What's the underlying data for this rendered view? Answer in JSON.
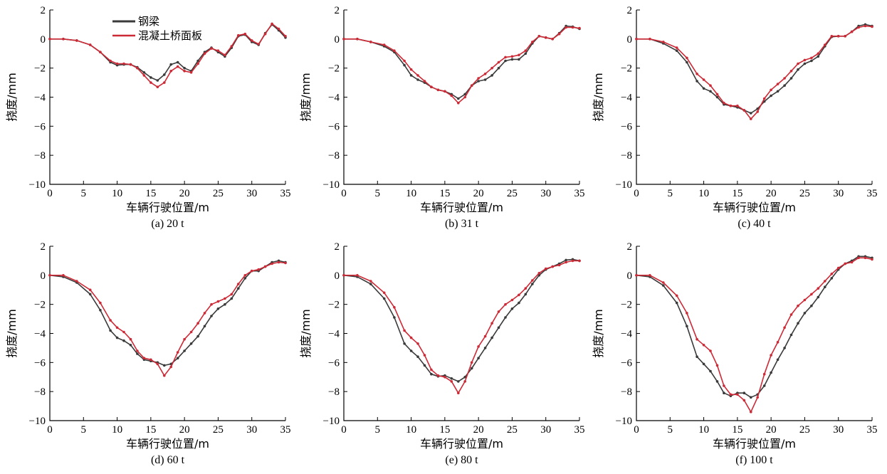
{
  "chart_data": [
    {
      "type": "line",
      "caption": "(a) 20 t",
      "xlabel": "车辆行驶位置/m",
      "ylabel": "挠度/mm",
      "xlim": [
        0,
        35
      ],
      "ylim": [
        -10,
        2
      ],
      "xticks": [
        0,
        5,
        10,
        15,
        20,
        25,
        30,
        35
      ],
      "yticks": [
        -10,
        -8,
        -6,
        -4,
        -2,
        0,
        2
      ],
      "legend": true,
      "series": [
        {
          "name": "钢梁",
          "color": "#3a3a3a",
          "x": [
            0,
            2,
            4,
            6,
            7.5,
            9,
            10,
            11,
            12,
            13,
            14,
            15,
            16,
            17,
            18,
            19,
            20,
            21,
            22,
            23,
            24,
            25,
            26,
            27,
            28,
            29,
            30,
            31,
            32,
            33,
            34,
            35
          ],
          "y": [
            0,
            0,
            -0.1,
            -0.4,
            -0.9,
            -1.6,
            -1.8,
            -1.75,
            -1.75,
            -1.95,
            -2.3,
            -2.65,
            -2.85,
            -2.45,
            -1.75,
            -1.6,
            -2.0,
            -2.2,
            -1.5,
            -0.9,
            -0.6,
            -0.9,
            -1.2,
            -0.6,
            0.2,
            0.3,
            -0.2,
            -0.4,
            0.4,
            1.0,
            0.6,
            0.1
          ]
        },
        {
          "name": "混凝土桥面板",
          "color": "#cc2a36",
          "x": [
            0,
            2,
            4,
            6,
            7.5,
            9,
            10,
            11,
            12,
            13,
            14,
            15,
            16,
            17,
            18,
            19,
            20,
            21,
            22,
            23,
            24,
            25,
            26,
            27,
            28,
            29,
            30,
            31,
            32,
            33,
            34,
            35
          ],
          "y": [
            0,
            0,
            -0.1,
            -0.4,
            -0.9,
            -1.5,
            -1.7,
            -1.7,
            -1.75,
            -2.0,
            -2.5,
            -3.0,
            -3.3,
            -3.0,
            -2.2,
            -1.9,
            -2.2,
            -2.3,
            -1.7,
            -1.0,
            -0.65,
            -0.8,
            -1.1,
            -0.5,
            0.25,
            0.35,
            -0.1,
            -0.35,
            0.35,
            1.05,
            0.7,
            0.2
          ]
        }
      ]
    },
    {
      "type": "line",
      "caption": "(b) 31 t",
      "xlabel": "车辆行驶位置/m",
      "ylabel": "挠度/mm",
      "xlim": [
        0,
        35
      ],
      "ylim": [
        -10,
        2
      ],
      "xticks": [
        0,
        5,
        10,
        15,
        20,
        25,
        30,
        35
      ],
      "yticks": [
        -10,
        -8,
        -6,
        -4,
        -2,
        0,
        2
      ],
      "legend": false,
      "series": [
        {
          "name": "钢梁",
          "color": "#3a3a3a",
          "x": [
            0,
            2,
            4,
            6,
            7.5,
            9,
            10,
            11,
            12,
            13,
            14,
            15,
            16,
            17,
            18,
            19,
            20,
            21,
            22,
            23,
            24,
            25,
            26,
            27,
            28,
            29,
            30,
            31,
            32,
            33,
            34,
            35
          ],
          "y": [
            0,
            0,
            -0.2,
            -0.5,
            -0.9,
            -1.8,
            -2.5,
            -2.8,
            -3.0,
            -3.3,
            -3.5,
            -3.6,
            -3.8,
            -4.1,
            -3.8,
            -3.2,
            -2.9,
            -2.8,
            -2.5,
            -2.0,
            -1.5,
            -1.4,
            -1.4,
            -1.0,
            -0.3,
            0.2,
            0.1,
            0.0,
            0.4,
            0.9,
            0.85,
            0.7
          ]
        },
        {
          "name": "混凝土桥面板",
          "color": "#cc2a36",
          "x": [
            0,
            2,
            4,
            6,
            7.5,
            9,
            10,
            11,
            12,
            13,
            14,
            15,
            16,
            17,
            18,
            19,
            20,
            21,
            22,
            23,
            24,
            25,
            26,
            27,
            28,
            29,
            30,
            31,
            32,
            33,
            34,
            35
          ],
          "y": [
            0,
            0,
            -0.2,
            -0.4,
            -0.8,
            -1.5,
            -2.1,
            -2.5,
            -2.9,
            -3.3,
            -3.5,
            -3.6,
            -3.9,
            -4.4,
            -4.0,
            -3.2,
            -2.7,
            -2.4,
            -2.0,
            -1.6,
            -1.25,
            -1.2,
            -1.1,
            -0.8,
            -0.2,
            0.2,
            0.1,
            0.0,
            0.35,
            0.8,
            0.8,
            0.75
          ]
        }
      ]
    },
    {
      "type": "line",
      "caption": "(c) 40 t",
      "xlabel": "车辆行驶位置/m",
      "ylabel": "挠度/mm",
      "xlim": [
        0,
        35
      ],
      "ylim": [
        -10,
        2
      ],
      "xticks": [
        0,
        5,
        10,
        15,
        20,
        25,
        30,
        35
      ],
      "yticks": [
        -10,
        -8,
        -6,
        -4,
        -2,
        0,
        2
      ],
      "legend": false,
      "series": [
        {
          "name": "钢梁",
          "color": "#3a3a3a",
          "x": [
            0,
            2,
            4,
            6,
            7.5,
            9,
            10,
            11,
            12,
            13,
            14,
            15,
            16,
            17,
            18,
            19,
            20,
            21,
            22,
            23,
            24,
            25,
            26,
            27,
            28,
            29,
            30,
            31,
            32,
            33,
            34,
            35
          ],
          "y": [
            0,
            0,
            -0.3,
            -0.8,
            -1.6,
            -2.9,
            -3.4,
            -3.6,
            -4.0,
            -4.5,
            -4.6,
            -4.7,
            -4.9,
            -5.1,
            -4.8,
            -4.3,
            -3.9,
            -3.6,
            -3.2,
            -2.7,
            -2.1,
            -1.7,
            -1.5,
            -1.2,
            -0.5,
            0.15,
            0.2,
            0.2,
            0.5,
            0.9,
            1.0,
            0.9
          ]
        },
        {
          "name": "混凝土桥面板",
          "color": "#cc2a36",
          "x": [
            0,
            2,
            4,
            6,
            7.5,
            9,
            10,
            11,
            12,
            13,
            14,
            15,
            16,
            17,
            18,
            19,
            20,
            21,
            22,
            23,
            24,
            25,
            26,
            27,
            28,
            29,
            30,
            31,
            32,
            33,
            34,
            35
          ],
          "y": [
            0,
            0,
            -0.2,
            -0.6,
            -1.3,
            -2.4,
            -2.8,
            -3.2,
            -3.8,
            -4.4,
            -4.6,
            -4.6,
            -4.9,
            -5.5,
            -5.0,
            -4.1,
            -3.5,
            -3.1,
            -2.7,
            -2.2,
            -1.7,
            -1.45,
            -1.3,
            -1.0,
            -0.4,
            0.2,
            0.2,
            0.2,
            0.5,
            0.8,
            0.9,
            0.85
          ]
        }
      ]
    },
    {
      "type": "line",
      "caption": "(d) 60 t",
      "xlabel": "车辆行驶位置/m",
      "ylabel": "挠度/mm",
      "xlim": [
        0,
        35
      ],
      "ylim": [
        -10,
        2
      ],
      "xticks": [
        0,
        5,
        10,
        15,
        20,
        25,
        30,
        35
      ],
      "yticks": [
        -10,
        -8,
        -6,
        -4,
        -2,
        0,
        2
      ],
      "legend": false,
      "series": [
        {
          "name": "钢梁",
          "color": "#3a3a3a",
          "x": [
            0,
            2,
            4,
            6,
            7.5,
            9,
            10,
            11,
            12,
            13,
            14,
            15,
            16,
            17,
            18,
            19,
            20,
            21,
            22,
            23,
            24,
            25,
            26,
            27,
            28,
            29,
            30,
            31,
            32,
            33,
            34,
            35
          ],
          "y": [
            0,
            -0.1,
            -0.5,
            -1.3,
            -2.4,
            -3.8,
            -4.3,
            -4.5,
            -4.8,
            -5.4,
            -5.8,
            -5.9,
            -6.0,
            -6.2,
            -6.1,
            -5.7,
            -5.2,
            -4.7,
            -4.2,
            -3.5,
            -2.8,
            -2.3,
            -2.0,
            -1.6,
            -0.9,
            -0.2,
            0.3,
            0.3,
            0.6,
            0.9,
            1.0,
            0.9
          ]
        },
        {
          "name": "混凝土桥面板",
          "color": "#cc2a36",
          "x": [
            0,
            2,
            4,
            6,
            7.5,
            9,
            10,
            11,
            12,
            13,
            14,
            15,
            16,
            17,
            18,
            19,
            20,
            21,
            22,
            23,
            24,
            25,
            26,
            27,
            28,
            29,
            30,
            31,
            32,
            33,
            34,
            35
          ],
          "y": [
            0,
            0,
            -0.4,
            -1.0,
            -1.9,
            -3.1,
            -3.6,
            -3.9,
            -4.4,
            -5.2,
            -5.7,
            -5.8,
            -6.1,
            -6.9,
            -6.3,
            -5.3,
            -4.4,
            -3.9,
            -3.3,
            -2.6,
            -2.0,
            -1.8,
            -1.6,
            -1.3,
            -0.6,
            0.0,
            0.3,
            0.4,
            0.6,
            0.8,
            0.9,
            0.85
          ]
        }
      ]
    },
    {
      "type": "line",
      "caption": "(e) 80 t",
      "xlabel": "车辆行驶位置/m",
      "ylabel": "挠度/mm",
      "xlim": [
        0,
        35
      ],
      "ylim": [
        -10,
        2
      ],
      "xticks": [
        0,
        5,
        10,
        15,
        20,
        25,
        30,
        35
      ],
      "yticks": [
        -10,
        -8,
        -6,
        -4,
        -2,
        0,
        2
      ],
      "legend": false,
      "series": [
        {
          "name": "钢梁",
          "color": "#3a3a3a",
          "x": [
            0,
            2,
            4,
            6,
            7.5,
            9,
            10,
            11,
            12,
            13,
            14,
            15,
            16,
            17,
            18,
            19,
            20,
            21,
            22,
            23,
            24,
            25,
            26,
            27,
            28,
            29,
            30,
            31,
            32,
            33,
            34,
            35
          ],
          "y": [
            0,
            -0.1,
            -0.6,
            -1.6,
            -2.9,
            -4.7,
            -5.2,
            -5.6,
            -6.2,
            -6.8,
            -6.95,
            -6.9,
            -7.1,
            -7.3,
            -7.0,
            -6.4,
            -5.7,
            -5.0,
            -4.3,
            -3.6,
            -2.9,
            -2.3,
            -1.9,
            -1.3,
            -0.6,
            0.0,
            0.4,
            0.6,
            0.8,
            1.05,
            1.1,
            1.0
          ]
        },
        {
          "name": "混凝土桥面板",
          "color": "#cc2a36",
          "x": [
            0,
            2,
            4,
            6,
            7.5,
            9,
            10,
            11,
            12,
            13,
            14,
            15,
            16,
            17,
            18,
            19,
            20,
            21,
            22,
            23,
            24,
            25,
            26,
            27,
            28,
            29,
            30,
            31,
            32,
            33,
            34,
            35
          ],
          "y": [
            0,
            0,
            -0.4,
            -1.2,
            -2.2,
            -3.8,
            -4.3,
            -4.7,
            -5.5,
            -6.5,
            -6.9,
            -7.0,
            -7.3,
            -8.1,
            -7.3,
            -6.0,
            -4.9,
            -4.2,
            -3.3,
            -2.5,
            -2.0,
            -1.7,
            -1.35,
            -0.9,
            -0.35,
            0.15,
            0.45,
            0.6,
            0.7,
            0.9,
            1.0,
            1.0
          ]
        }
      ]
    },
    {
      "type": "line",
      "caption": "(f) 100 t",
      "xlabel": "车辆行驶位置/m",
      "ylabel": "挠度/mm",
      "xlim": [
        0,
        35
      ],
      "ylim": [
        -10,
        2
      ],
      "xticks": [
        0,
        5,
        10,
        15,
        20,
        25,
        30,
        35
      ],
      "yticks": [
        -10,
        -8,
        -6,
        -4,
        -2,
        0,
        2
      ],
      "legend": false,
      "series": [
        {
          "name": "钢梁",
          "color": "#3a3a3a",
          "x": [
            0,
            2,
            4,
            6,
            7.5,
            9,
            10,
            11,
            12,
            13,
            14,
            15,
            16,
            17,
            18,
            19,
            20,
            21,
            22,
            23,
            24,
            25,
            26,
            27,
            28,
            29,
            30,
            31,
            32,
            33,
            34,
            35
          ],
          "y": [
            0,
            -0.1,
            -0.7,
            -1.9,
            -3.5,
            -5.6,
            -6.1,
            -6.6,
            -7.3,
            -8.1,
            -8.3,
            -8.1,
            -8.1,
            -8.4,
            -8.2,
            -7.6,
            -6.7,
            -5.8,
            -5.0,
            -4.1,
            -3.3,
            -2.6,
            -2.1,
            -1.5,
            -0.8,
            -0.2,
            0.4,
            0.8,
            1.0,
            1.3,
            1.3,
            1.2
          ]
        },
        {
          "name": "混凝土桥面板",
          "color": "#cc2a36",
          "x": [
            0,
            2,
            4,
            6,
            7.5,
            9,
            10,
            11,
            12,
            13,
            14,
            15,
            16,
            17,
            18,
            19,
            20,
            21,
            22,
            23,
            24,
            25,
            26,
            27,
            28,
            29,
            30,
            31,
            32,
            33,
            34,
            35
          ],
          "y": [
            0,
            0,
            -0.5,
            -1.4,
            -2.6,
            -4.4,
            -4.8,
            -5.2,
            -6.2,
            -7.6,
            -8.2,
            -8.2,
            -8.6,
            -9.4,
            -8.4,
            -6.8,
            -5.5,
            -4.6,
            -3.6,
            -2.7,
            -2.1,
            -1.7,
            -1.3,
            -0.9,
            -0.4,
            0.1,
            0.5,
            0.8,
            0.9,
            1.2,
            1.2,
            1.1
          ]
        }
      ]
    }
  ]
}
